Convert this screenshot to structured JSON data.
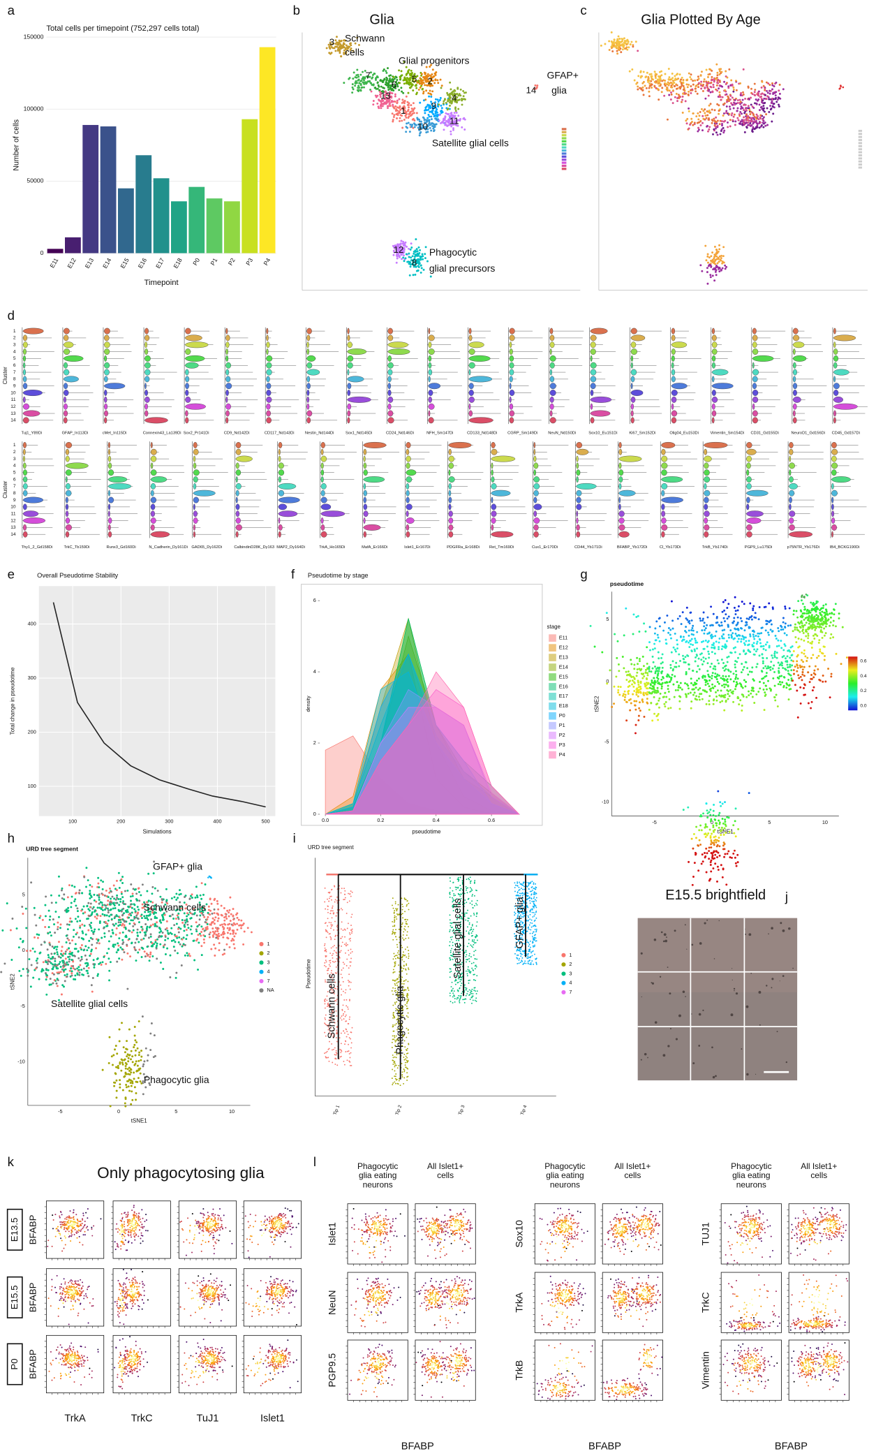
{
  "chart_data": [
    {
      "panel": "a",
      "type": "bar",
      "title": "Total cells per timepoint (752,297 cells total)",
      "x_label": "Timepoint",
      "y_label": "Number of cells",
      "categories": [
        "E11",
        "E12",
        "E13",
        "E14",
        "E15",
        "E16",
        "E17",
        "E18",
        "P0",
        "P1",
        "P2",
        "P3",
        "P4"
      ],
      "values": [
        3000,
        11000,
        89000,
        88000,
        45000,
        68000,
        52000,
        36000,
        46000,
        38000,
        36000,
        93000,
        143000
      ],
      "colors": [
        "#440154",
        "#481f70",
        "#443983",
        "#3b528b",
        "#31688e",
        "#287c8e",
        "#21918c",
        "#20a486",
        "#35b779",
        "#5ec962",
        "#90d743",
        "#c8e020",
        "#fde725"
      ],
      "ylim": [
        0,
        150000
      ],
      "yticks": [
        0,
        50000,
        100000,
        150000
      ],
      "grid": true
    },
    {
      "panel": "e",
      "type": "line",
      "title": "Overall Pseudotime Stability",
      "x_label": "Simulations",
      "y_label": "Total change in pseudotime",
      "x": [
        60,
        110,
        165,
        220,
        280,
        340,
        390,
        450,
        500
      ],
      "values": [
        440,
        255,
        180,
        138,
        112,
        95,
        82,
        72,
        62
      ],
      "color": "#222222",
      "xlim": [
        30,
        520
      ],
      "ylim": [
        45,
        470
      ],
      "xticks": [
        100,
        200,
        300,
        400,
        500
      ],
      "yticks": [
        100,
        200,
        300,
        400
      ],
      "grid": true
    },
    {
      "panel": "f",
      "type": "area",
      "title": "Pseudotime by stage",
      "x_label": "pseudotime",
      "y_label": "density",
      "legend_title": "stage",
      "x": [
        0,
        0.1,
        0.2,
        0.3,
        0.4,
        0.5,
        0.6,
        0.7
      ],
      "series": [
        {
          "name": "E11",
          "color": "#f8766d",
          "values": [
            1.8,
            2.2,
            1.0,
            0.3,
            0.1,
            0,
            0,
            0
          ]
        },
        {
          "name": "E12",
          "color": "#e18a00",
          "values": [
            0,
            0.5,
            3.5,
            4.5,
            1,
            0.2,
            0,
            0
          ]
        },
        {
          "name": "E13",
          "color": "#be9c00",
          "values": [
            0,
            0.3,
            3,
            5.5,
            2,
            0.5,
            0.1,
            0
          ]
        },
        {
          "name": "E14",
          "color": "#8cab00",
          "values": [
            0,
            0.2,
            2,
            5,
            2.5,
            1,
            0.5,
            0
          ]
        },
        {
          "name": "E15",
          "color": "#24b700",
          "values": [
            0,
            0.2,
            2,
            5.5,
            2.5,
            1.2,
            0.6,
            0
          ]
        },
        {
          "name": "E16",
          "color": "#00be70",
          "values": [
            0,
            0.1,
            2,
            5.5,
            2.5,
            1.5,
            0.8,
            0
          ]
        },
        {
          "name": "E17",
          "color": "#00c1ab",
          "values": [
            0,
            0.3,
            2.5,
            4.5,
            2.2,
            1.2,
            0.5,
            0
          ]
        },
        {
          "name": "E18",
          "color": "#00bbda",
          "values": [
            0,
            0.3,
            3.5,
            4,
            2,
            1,
            0.3,
            0
          ]
        },
        {
          "name": "P0",
          "color": "#00acfc",
          "values": [
            0,
            0.2,
            3,
            4.5,
            2.5,
            1.5,
            0.3,
            0
          ]
        },
        {
          "name": "P1",
          "color": "#8b93ff",
          "values": [
            0,
            0.1,
            2,
            3.5,
            3,
            2.5,
            0.5,
            0
          ]
        },
        {
          "name": "P2",
          "color": "#d575fe",
          "values": [
            0,
            0.1,
            2,
            3,
            3,
            2.5,
            0.6,
            0
          ]
        },
        {
          "name": "P3",
          "color": "#f962dd",
          "values": [
            0,
            0.1,
            1.5,
            2.5,
            3.5,
            3,
            0.8,
            0
          ]
        },
        {
          "name": "P4",
          "color": "#ff65ac",
          "values": [
            0,
            0.1,
            1.5,
            2.5,
            4,
            3,
            0.8,
            0
          ]
        }
      ],
      "xlim": [
        -0.02,
        0.75
      ],
      "ylim": [
        0,
        6.2
      ],
      "xticks": [
        {
          "value": 0,
          "label": "0.0"
        },
        {
          "value": 0.2,
          "label": "0.2"
        },
        {
          "value": 0.4,
          "label": "0.4"
        },
        {
          "value": 0.6,
          "label": "0.6"
        }
      ],
      "yticks": [
        0,
        2,
        4,
        6
      ]
    }
  ],
  "panels": {
    "b": {
      "panel": "b",
      "title": "Glia",
      "clusters": [
        "3",
        "7",
        "6",
        "5",
        "2",
        "13",
        "1",
        "9",
        "4",
        "10",
        "11",
        "14",
        "12",
        "8"
      ],
      "annotations": [
        "Schwann",
        "cells",
        "Glial progenitors",
        "GFAP+",
        "glia",
        "Satellite glial cells",
        "Phagocytic",
        "glial precursors"
      ]
    },
    "c": {
      "panel": "c",
      "title": "Glia Plotted By Age"
    },
    "d": {
      "panel": "d",
      "y_label": "Cluster",
      "clusters": [
        "1",
        "2",
        "3",
        "4",
        "5",
        "6",
        "7",
        "8",
        "9",
        "10",
        "11",
        "12",
        "13",
        "14"
      ],
      "markers_row1": [
        "Tuj1_Y89Di",
        "GFAP_In113Di",
        "cMet_In115Di",
        "Connexin43_La139Di",
        "Sox2_Pr141Di",
        "CD9_Nd142Di",
        "CD117_Nd143Di",
        "Nestin_Nd144Di",
        "Sox1_Nd145Di",
        "CD24_Nd146Di",
        "NFH_Sm147Di",
        "CD133_Nd148Di",
        "CGRP_Sm149Di",
        "NeuN_Nd150Di",
        "Sox10_Eu151Di",
        "Ki67_Sm152Di",
        "Olig04_Eu153Di",
        "Vimentin_Sm154Di",
        "CD31_Gd155Di",
        "NeuroD1_Gd156Di",
        "CD45_Gd157Di"
      ],
      "markers_row2": [
        "Thy1_2_Gd158Di",
        "TrkC_Tb159Di",
        "Runx3_Gd160Di",
        "N_Cadherin_Dy161Di",
        "GAD65_Dy162Di",
        "CalbindinD28K_Dy163",
        "MAP2_Dy164Di",
        "TrkA_Ho165Di",
        "MafA_Er166Di",
        "Islet1_Er167Di",
        "PDGFRa_Er168Di",
        "Ret_Tm169Di",
        "Cux1_Er170Di",
        "CD44_Yb171Di",
        "BFABP_Yb172Di",
        "Cl_Yb173Di",
        "TrkB_Yb174Di",
        "PGP9_Lu175Di",
        "p75NTR_Yb176Di",
        "IB4_BCKG190Di"
      ]
    },
    "g": {
      "panel": "g",
      "title": "pseudotime",
      "x_label": "tSNE1",
      "y_label": "tSNE2",
      "xticks": [
        "-5",
        "0",
        "5",
        "10"
      ],
      "yticks": [
        "5",
        "0",
        "-5",
        "-10"
      ],
      "colorbar_ticks": [
        "0.6",
        "0.4",
        "0.2",
        "0.0"
      ]
    },
    "h": {
      "panel": "h",
      "title": "URD tree segment",
      "x_label": "tSNE1",
      "y_label": "tSNE2",
      "xticks": [
        "-5",
        "0",
        "5",
        "10"
      ],
      "yticks": [
        "5",
        "0",
        "-5",
        "-10"
      ],
      "annotations": [
        "GFAP+ glia",
        "Schwann cells",
        "Satellite glial cells",
        "Phagocytic glia"
      ],
      "legend": [
        "1",
        "2",
        "3",
        "4",
        "7",
        "NA"
      ],
      "legend_colors": [
        "#f8766d",
        "#a3a500",
        "#00bf7d",
        "#00b0f6",
        "#e76bf3",
        "#7f7f7f"
      ]
    },
    "i": {
      "panel": "i",
      "title": "URD tree segment",
      "y_label": "Pseudotime",
      "tips": [
        "Tip 1",
        "Tip 2",
        "Tip 3",
        "Tip 4"
      ],
      "branches": [
        "Schwann cells",
        "Phagocytic glia",
        "Satellite glial cells",
        "GFAP+ glia"
      ],
      "legend": [
        "1",
        "2",
        "3",
        "4",
        "7"
      ],
      "legend_colors": [
        "#f8766d",
        "#a3a500",
        "#00bf7d",
        "#00b0f6",
        "#e76bf3"
      ]
    },
    "j": {
      "panel": "j",
      "title": "E15.5 brightfield"
    },
    "k": {
      "panel": "k",
      "title": "Only phagocytosing glia",
      "rows": [
        "E13.5",
        "E15.5",
        "P0"
      ],
      "y_label": "BFABP",
      "columns": [
        "TrkA",
        "TrkC",
        "TuJ1",
        "Islet1"
      ]
    },
    "l": {
      "panel": "l",
      "groups": [
        {
          "header_left": [
            "Phagocytic",
            "glia eating",
            "neurons"
          ],
          "header_right": [
            "All Islet1+",
            "cells"
          ],
          "rows": [
            "Islet1",
            "NeuN",
            "PGP9.5"
          ],
          "x_label": "BFABP"
        },
        {
          "header_left": [
            "Phagocytic",
            "glia eating",
            "neurons"
          ],
          "header_right": [
            "All Islet1+",
            "cells"
          ],
          "rows": [
            "Sox10",
            "TrkA",
            "TrkB"
          ],
          "x_label": "BFABP"
        },
        {
          "header_left": [
            "Phagocytic",
            "glia eating",
            "neurons"
          ],
          "header_right": [
            "All Islet1+",
            "cells"
          ],
          "rows": [
            "TUJ1",
            "TrkC",
            "Vimentin"
          ],
          "x_label": "BFABP"
        }
      ]
    }
  }
}
